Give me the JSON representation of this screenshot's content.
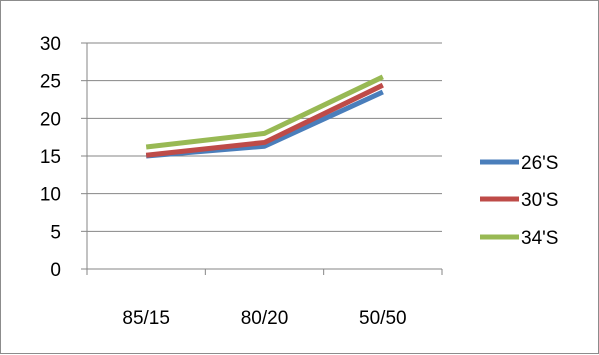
{
  "chart_data": {
    "type": "line",
    "categories": [
      "85/15",
      "80/20",
      "50/50"
    ],
    "series": [
      {
        "name": "26'S",
        "values": [
          15.0,
          16.3,
          23.5
        ],
        "color": "#4a7ebb"
      },
      {
        "name": "30'S",
        "values": [
          15.1,
          16.8,
          24.4
        ],
        "color": "#be4b48"
      },
      {
        "name": "34'S",
        "values": [
          16.2,
          18.0,
          25.5
        ],
        "color": "#98b954"
      }
    ],
    "y_ticks": [
      "0",
      "5",
      "10",
      "15",
      "20",
      "25",
      "30"
    ],
    "ylim": [
      0,
      30
    ],
    "grid": true,
    "legend_position": "right"
  }
}
